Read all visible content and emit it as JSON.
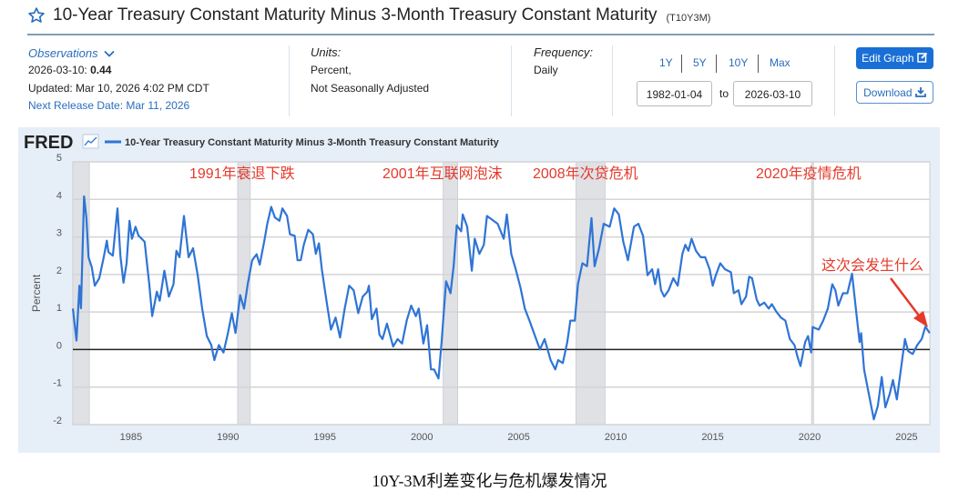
{
  "header": {
    "title": "10-Year Treasury Constant Maturity Minus 3-Month Treasury Constant Maturity",
    "series_id": "(T10Y3M)",
    "star_icon": "star-outline-icon"
  },
  "info": {
    "observations_label": "Observations",
    "observation_date": "2026-03-10:",
    "observation_value": "0.44",
    "updated": "Updated: Mar 10, 2026 4:02 PM CDT",
    "next_release": "Next Release Date: Mar 11, 2026",
    "units_label": "Units:",
    "units_line1": "Percent,",
    "units_line2": "Not Seasonally Adjusted",
    "frequency_label": "Frequency:",
    "frequency_value": "Daily"
  },
  "range": {
    "buttons": [
      "1Y",
      "5Y",
      "10Y",
      "Max"
    ],
    "from": "1982-01-04",
    "to_label": "to",
    "to": "2026-03-10"
  },
  "actions": {
    "edit_graph": "Edit Graph",
    "download": "Download"
  },
  "chart_data": {
    "type": "line",
    "logo": "FRED",
    "legend": "10-Year Treasury Constant Maturity Minus 3-Month Treasury Constant Maturity",
    "ylabel": "Percent",
    "xlabel": "",
    "ylim": [
      -2,
      5
    ],
    "xlim": [
      1982.0,
      2026.2
    ],
    "yticks": [
      -2,
      -1,
      0,
      1,
      2,
      3,
      4,
      5
    ],
    "xticks": [
      1985,
      1990,
      1995,
      2000,
      2005,
      2010,
      2015,
      2020,
      2025
    ],
    "grid": true,
    "line_color": "#2f74d6",
    "recession_color": "#dfe1e5",
    "recessions": [
      [
        1981.5,
        1982.85
      ],
      [
        1990.5,
        1991.15
      ],
      [
        2001.1,
        2001.85
      ],
      [
        2007.95,
        2009.45
      ],
      [
        2020.1,
        2020.2
      ]
    ],
    "annotations": [
      "1991年衰退下跌",
      "2001年互联网泡沫",
      "2008年次贷危机",
      "2020年疫情危机",
      "这次会发生什么"
    ],
    "annotation_color": "#e5392b",
    "series": [
      {
        "x": [
          1982.0,
          1982.19,
          1982.34,
          1982.42,
          1982.58,
          1982.7,
          1982.81,
          1982.97,
          1983.13,
          1983.36,
          1983.59,
          1983.75,
          1983.83,
          1984.06,
          1984.3,
          1984.45,
          1984.61,
          1984.77,
          1984.92,
          1985.05,
          1985.23,
          1985.39,
          1985.55,
          1985.7,
          1985.94,
          1986.09,
          1986.33,
          1986.48,
          1986.72,
          1986.95,
          1987.19,
          1987.34,
          1987.5,
          1987.73,
          1987.97,
          1988.2,
          1988.44,
          1988.67,
          1988.91,
          1989.14,
          1989.3,
          1989.53,
          1989.77,
          1990.0,
          1990.2,
          1990.39,
          1990.63,
          1990.83,
          1991.02,
          1991.25,
          1991.48,
          1991.64,
          1991.88,
          1992.03,
          1992.23,
          1992.42,
          1992.66,
          1992.81,
          1993.05,
          1993.2,
          1993.44,
          1993.59,
          1993.75,
          1993.91,
          1994.14,
          1994.38,
          1994.53,
          1994.69,
          1994.84,
          1995.08,
          1995.31,
          1995.55,
          1995.78,
          1996.02,
          1996.25,
          1996.48,
          1996.72,
          1996.95,
          1997.19,
          1997.27,
          1997.42,
          1997.66,
          1997.81,
          1997.97,
          1998.2,
          1998.52,
          1998.75,
          1998.98,
          1999.22,
          1999.45,
          1999.69,
          1999.84,
          2000.08,
          2000.27,
          2000.47,
          2000.63,
          2000.86,
          2001.02,
          2001.25,
          2001.48,
          2001.64,
          2001.8,
          2002.03,
          2002.11,
          2002.34,
          2002.58,
          2002.73,
          2002.97,
          2003.2,
          2003.36,
          2003.91,
          2004.22,
          2004.38,
          2004.61,
          2004.84,
          2005.08,
          2005.31,
          2005.55,
          2005.78,
          2006.09,
          2006.33,
          2006.64,
          2006.88,
          2007.03,
          2007.27,
          2007.5,
          2007.66,
          2007.89,
          2008.05,
          2008.28,
          2008.52,
          2008.75,
          2008.91,
          2009.14,
          2009.38,
          2009.69,
          2009.92,
          2010.16,
          2010.39,
          2010.63,
          2010.94,
          2011.17,
          2011.41,
          2011.64,
          2011.88,
          2012.03,
          2012.19,
          2012.34,
          2012.5,
          2012.73,
          2012.97,
          2013.2,
          2013.44,
          2013.59,
          2013.75,
          2013.91,
          2014.14,
          2014.38,
          2014.61,
          2014.84,
          2015.0,
          2015.16,
          2015.39,
          2015.63,
          2015.94,
          2016.09,
          2016.33,
          2016.48,
          2016.72,
          2016.88,
          2017.03,
          2017.27,
          2017.42,
          2017.66,
          2017.89,
          2018.05,
          2018.28,
          2018.52,
          2018.75,
          2018.98,
          2019.22,
          2019.38,
          2019.53,
          2019.77,
          2019.92,
          2020.08,
          2020.16,
          2020.47,
          2020.7,
          2020.94,
          2021.17,
          2021.33,
          2021.48,
          2021.72,
          2021.95,
          2022.19,
          2022.42,
          2022.58,
          2022.66,
          2022.81,
          2023.05,
          2023.31,
          2023.52,
          2023.72,
          2023.91,
          2024.14,
          2024.3,
          2024.5,
          2024.77,
          2024.92,
          2025.08,
          2025.31,
          2025.55,
          2025.78,
          2025.97,
          2026.19
        ],
        "y": [
          1.09,
          0.24,
          1.7,
          1.1,
          4.08,
          3.5,
          2.46,
          2.2,
          1.7,
          1.9,
          2.46,
          2.9,
          2.6,
          2.5,
          3.76,
          2.5,
          1.78,
          2.3,
          3.43,
          2.95,
          3.27,
          3.03,
          2.95,
          2.87,
          1.74,
          0.89,
          1.54,
          1.3,
          2.1,
          1.41,
          1.74,
          2.63,
          2.46,
          3.56,
          2.46,
          2.7,
          1.98,
          1.09,
          0.36,
          0.12,
          -0.28,
          0.12,
          -0.08,
          0.44,
          0.97,
          0.44,
          1.45,
          1.09,
          1.74,
          2.38,
          2.54,
          2.26,
          2.9,
          3.35,
          3.8,
          3.52,
          3.43,
          3.76,
          3.56,
          3.07,
          3.03,
          2.38,
          2.38,
          2.79,
          3.19,
          3.07,
          2.55,
          2.83,
          2.14,
          1.3,
          0.53,
          0.85,
          0.32,
          1.09,
          1.7,
          1.58,
          0.97,
          1.41,
          1.54,
          1.7,
          0.81,
          1.09,
          0.4,
          0.28,
          0.69,
          0.08,
          0.28,
          0.16,
          0.77,
          1.17,
          0.89,
          1.09,
          0.16,
          0.65,
          -0.53,
          -0.53,
          -0.77,
          0.2,
          1.82,
          1.5,
          2.22,
          3.31,
          3.15,
          3.6,
          3.27,
          2.1,
          2.95,
          2.55,
          2.79,
          3.56,
          3.35,
          2.95,
          3.6,
          2.55,
          2.14,
          1.66,
          1.09,
          0.77,
          0.44,
          0,
          0.28,
          -0.28,
          -0.53,
          -0.28,
          -0.36,
          0.2,
          0.77,
          0.77,
          1.74,
          2.3,
          2.22,
          3.5,
          2.22,
          2.7,
          3.35,
          3.27,
          3.76,
          3.6,
          2.87,
          2.38,
          3.27,
          3.35,
          3.03,
          1.98,
          2.14,
          1.74,
          2.14,
          1.58,
          1.41,
          1.58,
          1.9,
          1.7,
          2.55,
          2.79,
          2.63,
          2.95,
          2.63,
          2.46,
          2.46,
          2.14,
          1.7,
          1.98,
          2.3,
          2.14,
          2.06,
          1.5,
          1.58,
          1.21,
          1.41,
          1.94,
          1.9,
          1.33,
          1.17,
          1.25,
          1.09,
          1.21,
          1.01,
          0.85,
          0.77,
          0.28,
          0.12,
          -0.2,
          -0.44,
          0.2,
          0.36,
          -0.08,
          0.6,
          0.53,
          0.77,
          1.09,
          1.74,
          1.58,
          1.17,
          1.5,
          1.5,
          2.02,
          0.93,
          0.2,
          0.44,
          -0.53,
          -1.17,
          -1.86,
          -1.5,
          -0.73,
          -1.54,
          -1.17,
          -0.81,
          -1.33,
          -0.28,
          0.28,
          -0.04,
          -0.12,
          0.12,
          0.28,
          0.61,
          0.44
        ]
      }
    ]
  },
  "caption": "10Y-3M利差变化与危机爆发情况"
}
